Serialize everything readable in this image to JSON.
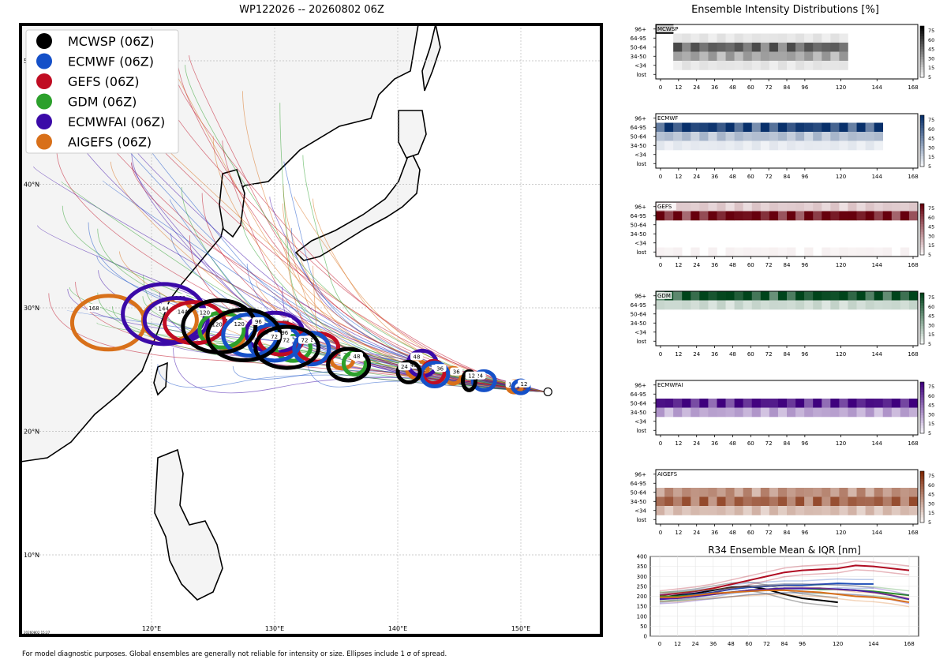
{
  "map": {
    "title": "WP122026 -- 20260802 06Z",
    "lat_labels": [
      "50°N",
      "40°N",
      "30°N",
      "20°N",
      "10°N"
    ],
    "lon_labels": [
      "120°E",
      "130°E",
      "140°E",
      "150°E"
    ],
    "timestamp": "20260802 15:27",
    "legend": [
      {
        "label": "MCWSP (06Z)",
        "color": "#000000"
      },
      {
        "label": "ECMWF (06Z)",
        "color": "#1550c8"
      },
      {
        "label": "GEFS (06Z)",
        "color": "#c00c22"
      },
      {
        "label": "GDM (06Z)",
        "color": "#2ca02c"
      },
      {
        "label": "ECMWFAI (06Z)",
        "color": "#3b0aa8"
      },
      {
        "label": "AIGEFS (06Z)",
        "color": "#d8701a"
      }
    ],
    "ellipses": [
      {
        "model": "MCWSP",
        "hour": "12",
        "lon": 145.8,
        "lat": 24.1,
        "rx": 8,
        "ry": 12
      },
      {
        "model": "MCWSP",
        "hour": "24",
        "lon": 140.9,
        "lat": 24.8,
        "rx": 14,
        "ry": 13
      },
      {
        "model": "MCWSP",
        "hour": "48",
        "lon": 136,
        "lat": 25.4,
        "rx": 26,
        "ry": 20
      },
      {
        "model": "MCWSP",
        "hour": "72",
        "lon": 131,
        "lat": 26.8,
        "rx": 40,
        "ry": 26
      },
      {
        "model": "MCWSP",
        "hour": "96",
        "lon": 127.5,
        "lat": 27.8,
        "rx": 46,
        "ry": 32
      },
      {
        "model": "MCWSP",
        "hour": "120",
        "lon": 125.5,
        "lat": 28.5,
        "rx": 46,
        "ry": 33
      },
      {
        "model": "ECMWF",
        "hour": "12",
        "lon": 150,
        "lat": 23.6,
        "rx": 10,
        "ry": 8
      },
      {
        "model": "ECMWF",
        "hour": "24",
        "lon": 147,
        "lat": 24.1,
        "rx": 14,
        "ry": 12
      },
      {
        "model": "ECMWF",
        "hour": "36",
        "lon": 143,
        "lat": 24.6,
        "rx": 17,
        "ry": 15
      },
      {
        "model": "ECMWF",
        "hour": "72",
        "lon": 133,
        "lat": 26.7,
        "rx": 22,
        "ry": 20
      },
      {
        "model": "ECMWF",
        "hour": "96",
        "lon": 130,
        "lat": 27.2,
        "rx": 32,
        "ry": 23
      },
      {
        "model": "ECMWF",
        "hour": "120",
        "lon": 128,
        "lat": 27.8,
        "rx": 34,
        "ry": 26
      },
      {
        "model": "GEFS",
        "hour": "36",
        "lon": 142.9,
        "lat": 24.8,
        "rx": 14,
        "ry": 14
      },
      {
        "model": "GEFS",
        "hour": "72",
        "lon": 133.5,
        "lat": 26.8,
        "rx": 26,
        "ry": 18
      },
      {
        "model": "GEFS",
        "hour": "96",
        "lon": 130.5,
        "lat": 27.5,
        "rx": 28,
        "ry": 20
      },
      {
        "model": "GEFS",
        "hour": "144",
        "lon": 123.5,
        "lat": 28.8,
        "rx": 38,
        "ry": 26
      },
      {
        "model": "GDM",
        "hour": "48",
        "lon": 136.5,
        "lat": 25.5,
        "rx": 14,
        "ry": 14
      },
      {
        "model": "GDM",
        "hour": "72",
        "lon": 131.5,
        "lat": 26.8,
        "rx": 22,
        "ry": 17
      },
      {
        "model": "GDM",
        "hour": "120",
        "lon": 125.7,
        "lat": 28.2,
        "rx": 28,
        "ry": 22
      },
      {
        "model": "ECMWFAI",
        "hour": "48",
        "lon": 142,
        "lat": 25.5,
        "rx": 18,
        "ry": 16
      },
      {
        "model": "ECMWFAI",
        "hour": "96",
        "lon": 130,
        "lat": 28,
        "rx": 36,
        "ry": 25
      },
      {
        "model": "ECMWFAI",
        "hour": "144",
        "lon": 122,
        "lat": 29,
        "rx": 40,
        "ry": 28
      },
      {
        "model": "ECMWFAI",
        "hour": "168",
        "lon": 121,
        "lat": 29.5,
        "rx": 52,
        "ry": 38
      },
      {
        "model": "AIGEFS",
        "hour": "12",
        "lon": 149.5,
        "lat": 23.6,
        "rx": 9,
        "ry": 7
      },
      {
        "model": "AIGEFS",
        "hour": "36",
        "lon": 144.5,
        "lat": 24.5,
        "rx": 10,
        "ry": 10
      },
      {
        "model": "AIGEFS",
        "hour": "48",
        "lon": 141.6,
        "lat": 25,
        "rx": 13,
        "ry": 11
      },
      {
        "model": "AIGEFS",
        "hour": "72",
        "lon": 135.5,
        "lat": 25.8,
        "rx": 14,
        "ry": 11
      },
      {
        "model": "AIGEFS",
        "hour": "120",
        "lon": 126,
        "lat": 28,
        "rx": 26,
        "ry": 20
      },
      {
        "model": "AIGEFS",
        "hour": "144",
        "lon": 121.5,
        "lat": 29,
        "rx": 34,
        "ry": 26
      },
      {
        "model": "AIGEFS",
        "hour": "168",
        "lon": 116.5,
        "lat": 28.8,
        "rx": 46,
        "ry": 34
      }
    ]
  },
  "intensity": {
    "title": "Ensemble Intensity Distributions [%]",
    "bins": [
      "96+",
      "64-95",
      "50-64",
      "34-50",
      "<34",
      "lost"
    ],
    "hours": [
      "0",
      "12",
      "24",
      "36",
      "48",
      "60",
      "72",
      "84",
      "96",
      "120",
      "144",
      "168"
    ],
    "colorbar_ticks": [
      "75",
      "60",
      "45",
      "30",
      "15",
      "5"
    ],
    "models": [
      {
        "name": "MCWSP",
        "color": "#000000"
      },
      {
        "name": "ECMWF",
        "color": "#08306b"
      },
      {
        "name": "GEFS",
        "color": "#67000d"
      },
      {
        "name": "GDM",
        "color": "#00441b"
      },
      {
        "name": "ECMWFAI",
        "color": "#3f007d"
      },
      {
        "name": "AIGEFS",
        "color": "#7f2704"
      }
    ]
  },
  "r34": {
    "title": "R34 Ensemble Mean & IQR [nm]",
    "yticks": [
      "400",
      "350",
      "300",
      "250",
      "200",
      "150",
      "100",
      "50",
      "0"
    ],
    "ylim": [
      0,
      400
    ],
    "hours": [
      "0",
      "12",
      "24",
      "36",
      "48",
      "60",
      "72",
      "84",
      "96",
      "120",
      "144",
      "168"
    ],
    "series": [
      {
        "model": "MCWSP",
        "color": "#000000",
        "x": [
          0,
          12,
          24,
          36,
          48,
          60,
          72,
          84,
          96,
          108,
          120
        ],
        "mean": [
          195,
          205,
          215,
          230,
          245,
          250,
          235,
          210,
          190,
          180,
          170
        ]
      },
      {
        "model": "ECMWF",
        "color": "#1f4fb8",
        "x": [
          0,
          12,
          24,
          36,
          48,
          60,
          72,
          84,
          96,
          108,
          120,
          132,
          144
        ],
        "mean": [
          190,
          200,
          210,
          220,
          235,
          245,
          250,
          255,
          255,
          260,
          265,
          262,
          262
        ]
      },
      {
        "model": "GEFS",
        "color": "#b00c22",
        "x": [
          0,
          12,
          24,
          36,
          48,
          60,
          72,
          84,
          96,
          108,
          120,
          132,
          144,
          156,
          168
        ],
        "mean": [
          205,
          215,
          225,
          240,
          260,
          280,
          300,
          320,
          330,
          335,
          340,
          355,
          350,
          340,
          330
        ]
      },
      {
        "model": "GDM",
        "color": "#2a8a2a",
        "x": [
          0,
          12,
          24,
          36,
          48,
          60,
          72,
          84,
          96,
          108,
          120,
          132,
          144,
          156,
          168
        ],
        "mean": [
          200,
          200,
          205,
          210,
          220,
          230,
          235,
          240,
          240,
          235,
          235,
          230,
          225,
          215,
          205
        ]
      },
      {
        "model": "ECMWFAI",
        "color": "#4b1aa8",
        "x": [
          0,
          12,
          24,
          36,
          48,
          60,
          72,
          84,
          96,
          108,
          120,
          132,
          144,
          156,
          168
        ],
        "mean": [
          185,
          190,
          200,
          210,
          220,
          230,
          235,
          240,
          240,
          240,
          235,
          230,
          220,
          205,
          185
        ]
      },
      {
        "model": "AIGEFS",
        "color": "#d8701a",
        "x": [
          0,
          12,
          24,
          36,
          48,
          60,
          72,
          84,
          96,
          108,
          120,
          132,
          144,
          156,
          168
        ],
        "mean": [
          195,
          195,
          205,
          215,
          220,
          225,
          230,
          230,
          225,
          220,
          210,
          200,
          195,
          185,
          170
        ]
      }
    ]
  },
  "footnote": "For model diagnostic purposes. Global ensembles are generally not reliable for intensity or size. Ellipses include 1 σ of spread."
}
